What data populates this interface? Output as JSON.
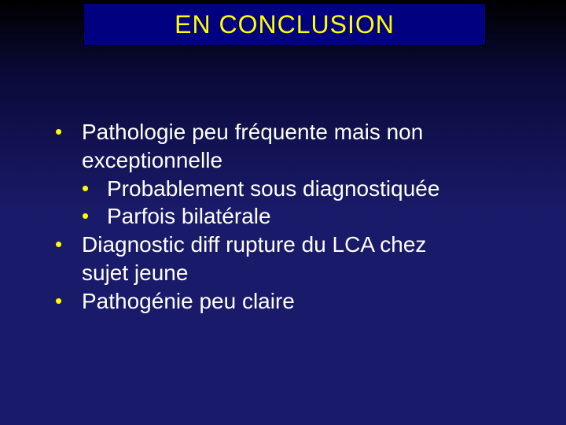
{
  "slide": {
    "title": "EN CONCLUSION",
    "background_gradient": [
      "#000000",
      "#1a1a6a"
    ],
    "title_box_bg": "#000080",
    "title_color": "#ffff00",
    "body_color": "#ffffff",
    "bullet_color": "#ffff00",
    "title_fontsize": 32,
    "body_fontsize": 28,
    "bullets": [
      {
        "text_line1": "Pathologie peu fréquente mais non",
        "text_line2": "exceptionnelle",
        "sub": [
          {
            "text": "Probablement sous diagnostiquée"
          },
          {
            "text": "Parfois bilatérale"
          }
        ]
      },
      {
        "text_line1": "Diagnostic diff rupture du LCA chez",
        "text_line2": "sujet jeune"
      },
      {
        "text_line1": "Pathogénie peu claire"
      }
    ]
  }
}
